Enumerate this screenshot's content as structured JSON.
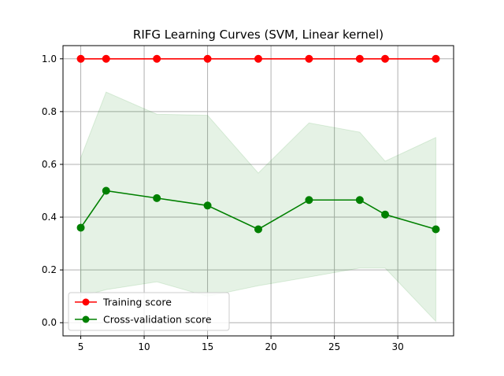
{
  "chart_data": {
    "type": "line",
    "title": "RIFG Learning Curves (SVM, Linear kernel)",
    "xlabel": "",
    "ylabel": "",
    "xlim": [
      3.6,
      34.4
    ],
    "ylim": [
      -0.05,
      1.05
    ],
    "grid": true,
    "legend_position": "lower-left",
    "x": [
      5,
      7,
      11,
      15,
      19,
      23,
      27,
      29,
      33
    ],
    "x_ticks": [
      5,
      10,
      15,
      20,
      25,
      30
    ],
    "x_tick_labels": [
      "5",
      "10",
      "15",
      "20",
      "25",
      "30"
    ],
    "y_ticks": [
      0.0,
      0.2,
      0.4,
      0.6,
      0.8,
      1.0
    ],
    "y_tick_labels": [
      "0.0",
      "0.2",
      "0.4",
      "0.6",
      "0.8",
      "1.0"
    ],
    "series": [
      {
        "name": "Training score",
        "color": "#ff0000",
        "values": [
          1.0,
          1.0,
          1.0,
          1.0,
          1.0,
          1.0,
          1.0,
          1.0,
          1.0
        ]
      },
      {
        "name": "Cross-validation score",
        "color": "#008000",
        "values": [
          0.36,
          0.5,
          0.472,
          0.444,
          0.354,
          0.465,
          0.465,
          0.41,
          0.354
        ],
        "band_upper": [
          0.625,
          0.874,
          0.79,
          0.786,
          0.567,
          0.757,
          0.722,
          0.612,
          0.702
        ],
        "band_lower": [
          0.1,
          0.125,
          0.155,
          0.1,
          0.14,
          0.173,
          0.207,
          0.207,
          0.005
        ],
        "band_color": "#008000"
      }
    ]
  }
}
